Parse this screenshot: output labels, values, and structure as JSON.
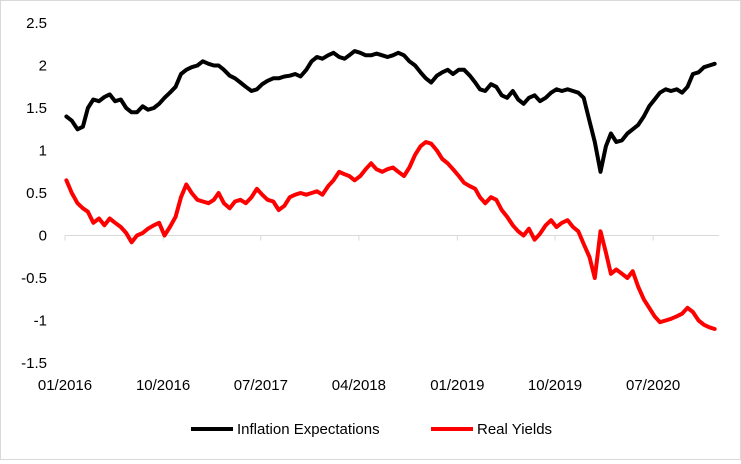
{
  "chart_data": {
    "type": "line",
    "title": "",
    "xlabel": "",
    "ylabel": "",
    "ylim": [
      -1.5,
      2.5
    ],
    "yticks": [
      -1.5,
      -1,
      -0.5,
      0,
      0.5,
      1,
      1.5,
      2,
      2.5
    ],
    "ytick_labels": [
      "-1.5",
      "-1",
      "-0.5",
      "0",
      "0.5",
      "1",
      "1.5",
      "2",
      "2.5"
    ],
    "xlim": [
      "2016-01",
      "2021-01"
    ],
    "xtick_labels": [
      "01/2016",
      "10/2016",
      "07/2017",
      "04/2018",
      "01/2019",
      "10/2019",
      "07/2020"
    ],
    "xtick_dates": [
      "2016-01",
      "2016-10",
      "2017-07",
      "2018-04",
      "2019-01",
      "2019-10",
      "2020-07"
    ],
    "grid": false,
    "legend_position": "bottom",
    "series": [
      {
        "name": "Inflation Expectations",
        "color": "#000000",
        "points": [
          [
            "2016-01-05",
            1.4
          ],
          [
            "2016-01-20",
            1.35
          ],
          [
            "2016-02-05",
            1.25
          ],
          [
            "2016-02-20",
            1.28
          ],
          [
            "2016-03-05",
            1.5
          ],
          [
            "2016-03-20",
            1.6
          ],
          [
            "2016-04-05",
            1.58
          ],
          [
            "2016-04-20",
            1.63
          ],
          [
            "2016-05-05",
            1.66
          ],
          [
            "2016-05-20",
            1.58
          ],
          [
            "2016-06-05",
            1.6
          ],
          [
            "2016-06-20",
            1.5
          ],
          [
            "2016-07-05",
            1.45
          ],
          [
            "2016-07-20",
            1.45
          ],
          [
            "2016-08-05",
            1.52
          ],
          [
            "2016-08-20",
            1.48
          ],
          [
            "2016-09-05",
            1.5
          ],
          [
            "2016-09-20",
            1.55
          ],
          [
            "2016-10-05",
            1.62
          ],
          [
            "2016-10-20",
            1.68
          ],
          [
            "2016-11-05",
            1.75
          ],
          [
            "2016-11-20",
            1.9
          ],
          [
            "2016-12-05",
            1.95
          ],
          [
            "2016-12-20",
            1.98
          ],
          [
            "2017-01-05",
            2.0
          ],
          [
            "2017-01-20",
            2.05
          ],
          [
            "2017-02-05",
            2.02
          ],
          [
            "2017-02-20",
            2.0
          ],
          [
            "2017-03-05",
            2.0
          ],
          [
            "2017-03-20",
            1.95
          ],
          [
            "2017-04-05",
            1.88
          ],
          [
            "2017-04-20",
            1.85
          ],
          [
            "2017-05-05",
            1.8
          ],
          [
            "2017-05-20",
            1.75
          ],
          [
            "2017-06-05",
            1.7
          ],
          [
            "2017-06-20",
            1.72
          ],
          [
            "2017-07-05",
            1.78
          ],
          [
            "2017-07-20",
            1.82
          ],
          [
            "2017-08-05",
            1.85
          ],
          [
            "2017-08-20",
            1.85
          ],
          [
            "2017-09-05",
            1.87
          ],
          [
            "2017-09-20",
            1.88
          ],
          [
            "2017-10-05",
            1.9
          ],
          [
            "2017-10-20",
            1.87
          ],
          [
            "2017-11-05",
            1.95
          ],
          [
            "2017-11-20",
            2.05
          ],
          [
            "2017-12-05",
            2.1
          ],
          [
            "2017-12-20",
            2.08
          ],
          [
            "2018-01-05",
            2.12
          ],
          [
            "2018-01-20",
            2.15
          ],
          [
            "2018-02-05",
            2.1
          ],
          [
            "2018-02-20",
            2.08
          ],
          [
            "2018-03-05",
            2.12
          ],
          [
            "2018-03-20",
            2.17
          ],
          [
            "2018-04-05",
            2.15
          ],
          [
            "2018-04-20",
            2.12
          ],
          [
            "2018-05-05",
            2.12
          ],
          [
            "2018-05-20",
            2.14
          ],
          [
            "2018-06-05",
            2.12
          ],
          [
            "2018-06-20",
            2.1
          ],
          [
            "2018-07-05",
            2.12
          ],
          [
            "2018-07-20",
            2.15
          ],
          [
            "2018-08-05",
            2.12
          ],
          [
            "2018-08-20",
            2.05
          ],
          [
            "2018-09-05",
            2.0
          ],
          [
            "2018-09-20",
            1.92
          ],
          [
            "2018-10-05",
            1.85
          ],
          [
            "2018-10-20",
            1.8
          ],
          [
            "2018-11-05",
            1.88
          ],
          [
            "2018-11-20",
            1.92
          ],
          [
            "2018-12-05",
            1.95
          ],
          [
            "2018-12-20",
            1.9
          ],
          [
            "2019-01-05",
            1.95
          ],
          [
            "2019-01-20",
            1.95
          ],
          [
            "2019-02-05",
            1.88
          ],
          [
            "2019-02-20",
            1.8
          ],
          [
            "2019-03-05",
            1.72
          ],
          [
            "2019-03-20",
            1.7
          ],
          [
            "2019-04-05",
            1.78
          ],
          [
            "2019-04-20",
            1.75
          ],
          [
            "2019-05-05",
            1.65
          ],
          [
            "2019-05-20",
            1.62
          ],
          [
            "2019-06-05",
            1.7
          ],
          [
            "2019-06-20",
            1.6
          ],
          [
            "2019-07-05",
            1.55
          ],
          [
            "2019-07-20",
            1.62
          ],
          [
            "2019-08-05",
            1.65
          ],
          [
            "2019-08-20",
            1.58
          ],
          [
            "2019-09-05",
            1.62
          ],
          [
            "2019-09-20",
            1.68
          ],
          [
            "2019-10-05",
            1.72
          ],
          [
            "2019-10-20",
            1.7
          ],
          [
            "2019-11-05",
            1.72
          ],
          [
            "2019-11-20",
            1.7
          ],
          [
            "2019-12-05",
            1.68
          ],
          [
            "2019-12-20",
            1.62
          ],
          [
            "2020-01-05",
            1.35
          ],
          [
            "2020-01-20",
            1.1
          ],
          [
            "2020-02-05",
            0.75
          ],
          [
            "2020-02-20",
            1.05
          ],
          [
            "2020-03-05",
            1.2
          ],
          [
            "2020-03-20",
            1.1
          ],
          [
            "2020-04-05",
            1.12
          ],
          [
            "2020-04-20",
            1.2
          ],
          [
            "2020-05-05",
            1.25
          ],
          [
            "2020-05-20",
            1.3
          ],
          [
            "2020-06-05",
            1.4
          ],
          [
            "2020-06-20",
            1.52
          ],
          [
            "2020-07-05",
            1.6
          ],
          [
            "2020-07-20",
            1.68
          ],
          [
            "2020-08-05",
            1.72
          ],
          [
            "2020-08-20",
            1.7
          ],
          [
            "2020-09-05",
            1.72
          ],
          [
            "2020-09-20",
            1.68
          ],
          [
            "2020-10-05",
            1.75
          ],
          [
            "2020-10-20",
            1.9
          ],
          [
            "2020-11-05",
            1.92
          ],
          [
            "2020-11-20",
            1.98
          ],
          [
            "2020-12-05",
            2.0
          ],
          [
            "2020-12-20",
            2.02
          ]
        ]
      },
      {
        "name": "Real Yields",
        "color": "#ff0000",
        "points": [
          [
            "2016-01-05",
            0.65
          ],
          [
            "2016-01-20",
            0.5
          ],
          [
            "2016-02-05",
            0.38
          ],
          [
            "2016-02-20",
            0.32
          ],
          [
            "2016-03-05",
            0.28
          ],
          [
            "2016-03-20",
            0.15
          ],
          [
            "2016-04-05",
            0.2
          ],
          [
            "2016-04-20",
            0.12
          ],
          [
            "2016-05-05",
            0.2
          ],
          [
            "2016-05-20",
            0.15
          ],
          [
            "2016-06-05",
            0.1
          ],
          [
            "2016-06-20",
            0.03
          ],
          [
            "2016-07-05",
            -0.08
          ],
          [
            "2016-07-20",
            0.0
          ],
          [
            "2016-08-05",
            0.03
          ],
          [
            "2016-08-20",
            0.08
          ],
          [
            "2016-09-05",
            0.12
          ],
          [
            "2016-09-20",
            0.15
          ],
          [
            "2016-10-05",
            0.0
          ],
          [
            "2016-10-20",
            0.1
          ],
          [
            "2016-11-05",
            0.22
          ],
          [
            "2016-11-20",
            0.45
          ],
          [
            "2016-12-05",
            0.6
          ],
          [
            "2016-12-20",
            0.5
          ],
          [
            "2017-01-05",
            0.42
          ],
          [
            "2017-01-20",
            0.4
          ],
          [
            "2017-02-05",
            0.38
          ],
          [
            "2017-02-20",
            0.42
          ],
          [
            "2017-03-05",
            0.5
          ],
          [
            "2017-03-20",
            0.38
          ],
          [
            "2017-04-05",
            0.32
          ],
          [
            "2017-04-20",
            0.4
          ],
          [
            "2017-05-05",
            0.42
          ],
          [
            "2017-05-20",
            0.38
          ],
          [
            "2017-06-05",
            0.45
          ],
          [
            "2017-06-20",
            0.55
          ],
          [
            "2017-07-05",
            0.48
          ],
          [
            "2017-07-20",
            0.42
          ],
          [
            "2017-08-05",
            0.4
          ],
          [
            "2017-08-20",
            0.3
          ],
          [
            "2017-09-05",
            0.35
          ],
          [
            "2017-09-20",
            0.45
          ],
          [
            "2017-10-05",
            0.48
          ],
          [
            "2017-10-20",
            0.5
          ],
          [
            "2017-11-05",
            0.48
          ],
          [
            "2017-11-20",
            0.5
          ],
          [
            "2017-12-05",
            0.52
          ],
          [
            "2017-12-20",
            0.48
          ],
          [
            "2018-01-05",
            0.58
          ],
          [
            "2018-01-20",
            0.65
          ],
          [
            "2018-02-05",
            0.75
          ],
          [
            "2018-02-20",
            0.72
          ],
          [
            "2018-03-05",
            0.7
          ],
          [
            "2018-03-20",
            0.65
          ],
          [
            "2018-04-05",
            0.7
          ],
          [
            "2018-04-20",
            0.78
          ],
          [
            "2018-05-05",
            0.85
          ],
          [
            "2018-05-20",
            0.78
          ],
          [
            "2018-06-05",
            0.75
          ],
          [
            "2018-06-20",
            0.78
          ],
          [
            "2018-07-05",
            0.8
          ],
          [
            "2018-07-20",
            0.75
          ],
          [
            "2018-08-05",
            0.7
          ],
          [
            "2018-08-20",
            0.8
          ],
          [
            "2018-09-05",
            0.95
          ],
          [
            "2018-09-20",
            1.05
          ],
          [
            "2018-10-05",
            1.1
          ],
          [
            "2018-10-20",
            1.08
          ],
          [
            "2018-11-05",
            1.0
          ],
          [
            "2018-11-20",
            0.9
          ],
          [
            "2018-12-05",
            0.85
          ],
          [
            "2018-12-20",
            0.78
          ],
          [
            "2019-01-05",
            0.7
          ],
          [
            "2019-01-20",
            0.62
          ],
          [
            "2019-02-05",
            0.58
          ],
          [
            "2019-02-20",
            0.55
          ],
          [
            "2019-03-05",
            0.45
          ],
          [
            "2019-03-20",
            0.38
          ],
          [
            "2019-04-05",
            0.45
          ],
          [
            "2019-04-20",
            0.42
          ],
          [
            "2019-05-05",
            0.3
          ],
          [
            "2019-05-20",
            0.22
          ],
          [
            "2019-06-05",
            0.12
          ],
          [
            "2019-06-20",
            0.05
          ],
          [
            "2019-07-05",
            0.0
          ],
          [
            "2019-07-20",
            0.08
          ],
          [
            "2019-08-05",
            -0.05
          ],
          [
            "2019-08-20",
            0.02
          ],
          [
            "2019-09-05",
            0.12
          ],
          [
            "2019-09-20",
            0.18
          ],
          [
            "2019-10-05",
            0.1
          ],
          [
            "2019-10-20",
            0.15
          ],
          [
            "2019-11-05",
            0.18
          ],
          [
            "2019-11-20",
            0.1
          ],
          [
            "2019-12-05",
            0.05
          ],
          [
            "2019-12-20",
            -0.1
          ],
          [
            "2020-01-05",
            -0.25
          ],
          [
            "2020-01-20",
            -0.5
          ],
          [
            "2020-02-05",
            0.05
          ],
          [
            "2020-02-20",
            -0.2
          ],
          [
            "2020-03-05",
            -0.45
          ],
          [
            "2020-03-20",
            -0.4
          ],
          [
            "2020-04-05",
            -0.45
          ],
          [
            "2020-04-20",
            -0.5
          ],
          [
            "2020-05-05",
            -0.42
          ],
          [
            "2020-05-20",
            -0.6
          ],
          [
            "2020-06-05",
            -0.75
          ],
          [
            "2020-06-20",
            -0.85
          ],
          [
            "2020-07-05",
            -0.95
          ],
          [
            "2020-07-20",
            -1.02
          ],
          [
            "2020-08-05",
            -1.0
          ],
          [
            "2020-08-20",
            -0.98
          ],
          [
            "2020-09-05",
            -0.95
          ],
          [
            "2020-09-20",
            -0.92
          ],
          [
            "2020-10-05",
            -0.85
          ],
          [
            "2020-10-20",
            -0.9
          ],
          [
            "2020-11-05",
            -1.0
          ],
          [
            "2020-11-20",
            -1.05
          ],
          [
            "2020-12-05",
            -1.08
          ],
          [
            "2020-12-20",
            -1.1
          ]
        ]
      }
    ]
  }
}
